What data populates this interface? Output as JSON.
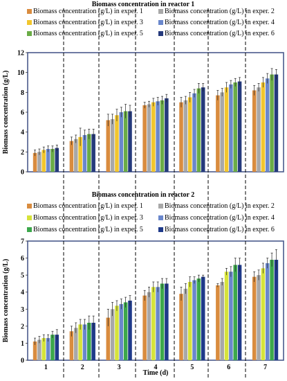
{
  "chart_data": [
    {
      "type": "bar",
      "title": "Biomass concentration in reactor 1",
      "xlabel": "",
      "ylabel": "Biomass concentration (g/L)",
      "ylim": [
        0,
        12
      ],
      "yticks": [
        0,
        2,
        4,
        6,
        8,
        10,
        12
      ],
      "categories": [
        "1",
        "2",
        "3",
        "4",
        "5",
        "6",
        "7"
      ],
      "show_category_labels": false,
      "legend": "top, two columns",
      "grid": false,
      "series": [
        {
          "name": "Biomass concentration (g/L) in exper. 1",
          "color": "#d98c3f",
          "values": [
            1.9,
            3.1,
            5.2,
            6.7,
            7.0,
            7.7,
            8.2
          ],
          "errors": [
            0.3,
            0.4,
            0.6,
            0.3,
            0.5,
            0.5,
            0.5
          ]
        },
        {
          "name": "Biomass concentration (g/L) in exper. 2",
          "color": "#a8a8a8",
          "values": [
            2.0,
            3.3,
            5.3,
            6.8,
            7.2,
            8.0,
            8.5
          ],
          "errors": [
            0.3,
            0.4,
            0.5,
            0.3,
            0.4,
            0.4,
            0.4
          ]
        },
        {
          "name": "Biomass concentration (g/L) in exper. 3",
          "color": "#f2c62d",
          "values": [
            2.2,
            3.5,
            5.7,
            7.0,
            7.5,
            8.5,
            9.0
          ],
          "errors": [
            0.3,
            0.9,
            0.6,
            0.4,
            0.5,
            0.5,
            0.5
          ]
        },
        {
          "name": "Biomass concentration (g/L) in exper. 4",
          "color": "#6a87cc",
          "values": [
            2.3,
            3.7,
            6.0,
            7.1,
            7.9,
            8.8,
            9.4
          ],
          "errors": [
            0.3,
            0.5,
            0.5,
            0.4,
            0.4,
            0.4,
            0.5
          ]
        },
        {
          "name": "Biomass concentration (g/L) in exper. 5",
          "color": "#6aac46",
          "values": [
            2.3,
            3.8,
            6.1,
            7.2,
            8.4,
            9.0,
            9.8
          ],
          "errors": [
            0.3,
            0.5,
            0.7,
            0.4,
            0.5,
            0.4,
            0.6
          ]
        },
        {
          "name": "Biomass concentration (g/L) in exper. 6",
          "color": "#253a7c",
          "values": [
            2.4,
            3.8,
            6.1,
            7.4,
            8.5,
            9.1,
            9.8
          ],
          "errors": [
            0.3,
            0.5,
            0.6,
            0.4,
            0.4,
            0.4,
            0.5
          ]
        }
      ]
    },
    {
      "type": "bar",
      "title": "Biomass concentration in reactor 2",
      "xlabel": "Time (d)",
      "ylabel": "Biomass concentration (g/L)",
      "ylim": [
        0,
        7
      ],
      "yticks": [
        0,
        1,
        2,
        3,
        4,
        5,
        6,
        7
      ],
      "categories": [
        "1",
        "2",
        "3",
        "4",
        "5",
        "6",
        "7"
      ],
      "show_category_labels": true,
      "legend": "top, two columns",
      "grid": false,
      "series": [
        {
          "name": "Biomass concentration (g/L) in exper. 1",
          "color": "#d98c3f",
          "values": [
            1.1,
            1.7,
            2.5,
            3.8,
            3.9,
            4.4,
            4.9
          ],
          "errors": [
            0.2,
            0.3,
            0.5,
            0.3,
            0.4,
            0.1,
            0.3
          ]
        },
        {
          "name": "Biomass concentration (g/L) in exper. 2",
          "color": "#a8a8a8",
          "values": [
            1.2,
            1.9,
            3.0,
            4.0,
            4.2,
            4.6,
            5.0
          ],
          "errors": [
            0.2,
            0.3,
            0.4,
            0.3,
            0.3,
            0.2,
            0.3
          ]
        },
        {
          "name": "Biomass concentration (g/L) in exper. 3",
          "color": "#d6e33a",
          "values": [
            1.3,
            2.1,
            3.2,
            4.3,
            4.6,
            5.2,
            5.4
          ],
          "errors": [
            0.2,
            0.3,
            0.3,
            0.3,
            0.3,
            0.2,
            0.3
          ]
        },
        {
          "name": "Biomass concentration (g/L) in exper. 4",
          "color": "#6a87cc",
          "values": [
            1.3,
            2.1,
            3.3,
            4.3,
            4.7,
            5.2,
            5.7
          ],
          "errors": [
            0.2,
            0.3,
            0.3,
            0.3,
            0.2,
            0.3,
            0.3
          ]
        },
        {
          "name": "Biomass concentration (g/L) in exper. 5",
          "color": "#3ca84b",
          "values": [
            1.5,
            2.2,
            3.4,
            4.5,
            4.8,
            5.6,
            5.9
          ],
          "errors": [
            0.2,
            0.4,
            0.3,
            0.3,
            0.2,
            0.4,
            0.4
          ]
        },
        {
          "name": "Biomass concentration (g/L) in exper. 6",
          "color": "#1f3a8a",
          "values": [
            1.5,
            2.2,
            3.5,
            4.5,
            4.9,
            5.6,
            5.9
          ],
          "errors": [
            0.3,
            0.4,
            0.3,
            0.3,
            0.1,
            0.4,
            0.6
          ]
        }
      ]
    }
  ]
}
